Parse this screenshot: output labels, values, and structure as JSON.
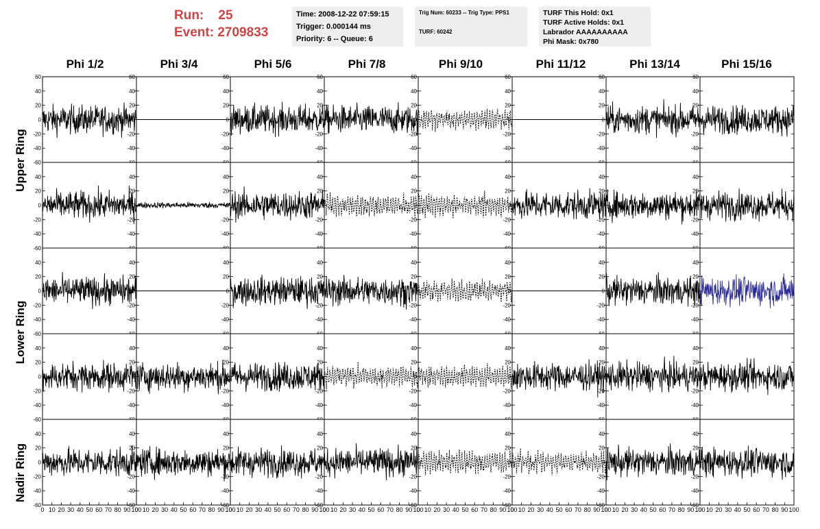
{
  "run": {
    "run_label": "Run:",
    "run_value": "25",
    "event_label": "Event:",
    "event_value": "2709833"
  },
  "time_box": {
    "time": "Time: 2008-12-22 07:59:15",
    "trigger": "Trigger: 0.000144 ms",
    "priority": "Priority: 6 -- Queue: 6"
  },
  "trig_box": {
    "trig": "Trig Num: 60233 -- Trig Type: PPS1",
    "turf": "TURF: 60242"
  },
  "turf_box": {
    "hold": "TURF This Hold: 0x1",
    "active": "TURF Active Holds: 0x1",
    "labrador": "Labrador AAAAAAAAAA",
    "phimask": "Phi Mask: 0x780"
  },
  "phi_headers": [
    "Phi 1/2",
    "Phi 3/4",
    "Phi 5/6",
    "Phi 7/8",
    "Phi 9/10",
    "Phi 11/12",
    "Phi 13/14",
    "Phi 15/16"
  ],
  "ring_labels": {
    "upper": "Upper Ring",
    "lower": "Lower Ring",
    "nadir": "Nadir Ring"
  },
  "colors": {
    "run_text": "#cc4444",
    "box_bg": "#eeeeee",
    "trace": "#000000",
    "trace_highlight": "#2a2a99"
  },
  "chart_data": {
    "type": "line",
    "layout": "grid 5 rows x 8 columns of waveform panels",
    "ylim": [
      -60,
      60
    ],
    "xlim": [
      0,
      100
    ],
    "y_ticks": [
      "60",
      "40",
      "20",
      "0",
      "-20",
      "-40",
      "-60"
    ],
    "x_ticks": [
      "0",
      "10",
      "20",
      "30",
      "40",
      "50",
      "60",
      "70",
      "80",
      "90",
      "100"
    ],
    "panels": [
      [
        "noisy",
        "flat",
        "noisy",
        "noisy",
        "dashed",
        "flat",
        "noisy",
        "noisy"
      ],
      [
        "noisy",
        "small",
        "noisy",
        "dashed",
        "dashed",
        "noisy",
        "noisy",
        "noisy"
      ],
      [
        "noisy",
        "flat",
        "noisy",
        "noisy",
        "dashed",
        "flat",
        "noisy",
        "blue"
      ],
      [
        "noisy",
        "noisy",
        "noisy",
        "dashed",
        "dashed",
        "noisy",
        "noisy",
        "noisy"
      ],
      [
        "noisy",
        "noisy",
        "noisy",
        "noisy",
        "dashed",
        "dashed",
        "noisy",
        "noisy"
      ]
    ]
  }
}
